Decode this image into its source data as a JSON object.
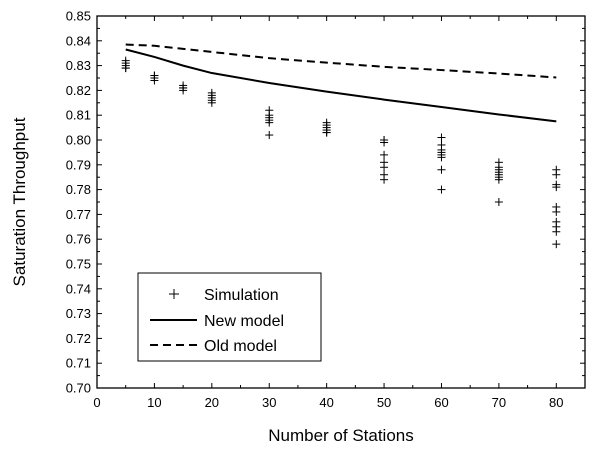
{
  "chart_data": {
    "type": "line",
    "title": "",
    "xlabel": "Number of Stations",
    "ylabel": "Saturation Throughput",
    "xlim": [
      0,
      85
    ],
    "ylim": [
      0.7,
      0.85
    ],
    "xticks": [
      "0",
      "10",
      "20",
      "30",
      "40",
      "50",
      "60",
      "70",
      "80"
    ],
    "yticks": [
      "0.70",
      "0.71",
      "0.72",
      "0.73",
      "0.74",
      "0.75",
      "0.76",
      "0.77",
      "0.78",
      "0.79",
      "0.80",
      "0.81",
      "0.82",
      "0.83",
      "0.84",
      "0.85"
    ],
    "grid": false,
    "legend_position": "bottom-left",
    "series": [
      {
        "name": "Simulation",
        "style": "plus-markers",
        "points": [
          [
            5,
            0.832
          ],
          [
            5,
            0.831
          ],
          [
            5,
            0.83
          ],
          [
            5,
            0.829
          ],
          [
            5,
            0.829
          ],
          [
            10,
            0.826
          ],
          [
            10,
            0.826
          ],
          [
            10,
            0.825
          ],
          [
            10,
            0.824
          ],
          [
            15,
            0.822
          ],
          [
            15,
            0.821
          ],
          [
            15,
            0.821
          ],
          [
            15,
            0.82
          ],
          [
            20,
            0.819
          ],
          [
            20,
            0.818
          ],
          [
            20,
            0.817
          ],
          [
            20,
            0.816
          ],
          [
            20,
            0.815
          ],
          [
            30,
            0.812
          ],
          [
            30,
            0.81
          ],
          [
            30,
            0.809
          ],
          [
            30,
            0.808
          ],
          [
            30,
            0.807
          ],
          [
            30,
            0.802
          ],
          [
            40,
            0.807
          ],
          [
            40,
            0.806
          ],
          [
            40,
            0.805
          ],
          [
            40,
            0.804
          ],
          [
            40,
            0.803
          ],
          [
            40,
            0.803
          ],
          [
            50,
            0.8
          ],
          [
            50,
            0.8
          ],
          [
            50,
            0.799
          ],
          [
            50,
            0.794
          ],
          [
            50,
            0.791
          ],
          [
            50,
            0.789
          ],
          [
            50,
            0.786
          ],
          [
            50,
            0.784
          ],
          [
            60,
            0.801
          ],
          [
            60,
            0.798
          ],
          [
            60,
            0.796
          ],
          [
            60,
            0.795
          ],
          [
            60,
            0.794
          ],
          [
            60,
            0.793
          ],
          [
            60,
            0.788
          ],
          [
            60,
            0.78
          ],
          [
            70,
            0.791
          ],
          [
            70,
            0.789
          ],
          [
            70,
            0.788
          ],
          [
            70,
            0.787
          ],
          [
            70,
            0.786
          ],
          [
            70,
            0.785
          ],
          [
            70,
            0.784
          ],
          [
            70,
            0.775
          ],
          [
            80,
            0.788
          ],
          [
            80,
            0.786
          ],
          [
            80,
            0.782
          ],
          [
            80,
            0.781
          ],
          [
            80,
            0.773
          ],
          [
            80,
            0.771
          ],
          [
            80,
            0.767
          ],
          [
            80,
            0.765
          ],
          [
            80,
            0.763
          ],
          [
            80,
            0.758
          ]
        ]
      },
      {
        "name": "New model",
        "style": "solid",
        "x": [
          5,
          10,
          15,
          20,
          30,
          40,
          50,
          60,
          70,
          80
        ],
        "values": [
          0.8365,
          0.8335,
          0.83,
          0.827,
          0.823,
          0.8195,
          0.8163,
          0.8133,
          0.8103,
          0.8075
        ]
      },
      {
        "name": "Old model",
        "style": "dashed",
        "x": [
          5,
          10,
          20,
          30,
          40,
          50,
          60,
          70,
          80
        ],
        "values": [
          0.8385,
          0.838,
          0.8355,
          0.833,
          0.8312,
          0.8295,
          0.8282,
          0.8268,
          0.8252
        ]
      }
    ]
  }
}
